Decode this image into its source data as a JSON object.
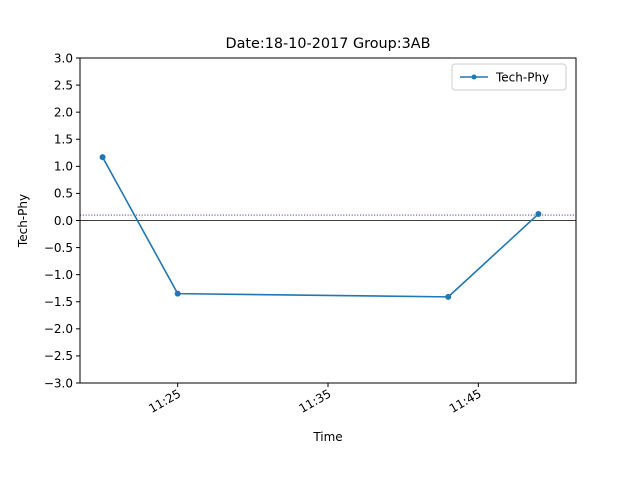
{
  "chart_data": {
    "type": "line",
    "title": "Date:18-10-2017 Group:3AB",
    "xlabel": "Time",
    "ylabel": "Tech-Phy",
    "x_is_time": true,
    "xlim": [
      "11:18:30",
      "11:51:30"
    ],
    "ylim": [
      -3.0,
      3.0
    ],
    "xticks": [
      {
        "label": "11:25",
        "value": "11:25"
      },
      {
        "label": "11:35",
        "value": "11:35"
      },
      {
        "label": "11:45",
        "value": "11:45"
      }
    ],
    "yticks": [
      {
        "label": "3.0",
        "value": 3.0
      },
      {
        "label": "2.5",
        "value": 2.5
      },
      {
        "label": "2.0",
        "value": 2.0
      },
      {
        "label": "1.5",
        "value": 1.5
      },
      {
        "label": "1.0",
        "value": 1.0
      },
      {
        "label": "0.5",
        "value": 0.5
      },
      {
        "label": "0.0",
        "value": 0.0
      },
      {
        "label": "−0.5",
        "value": -0.5
      },
      {
        "label": "−1.0",
        "value": -1.0
      },
      {
        "label": "−1.5",
        "value": -1.5
      },
      {
        "label": "−2.0",
        "value": -2.0
      },
      {
        "label": "−2.5",
        "value": -2.5
      },
      {
        "label": "−3.0",
        "value": -3.0
      }
    ],
    "series": [
      {
        "name": "Tech-Phy",
        "color": "#1f77b4",
        "marker": "circle",
        "points": [
          {
            "x": "11:20",
            "y": 1.17
          },
          {
            "x": "11:25",
            "y": -1.35
          },
          {
            "x": "11:43",
            "y": -1.41
          },
          {
            "x": "11:49",
            "y": 0.12
          }
        ]
      }
    ],
    "reference_lines": [
      {
        "y": 0.0,
        "style": "solid",
        "color": "#000000"
      },
      {
        "y": 0.1,
        "style": "dotted",
        "color": "#4b2a6e"
      }
    ],
    "grid": false,
    "legend": {
      "position": "top-right",
      "entries": [
        "Tech-Phy"
      ]
    }
  }
}
